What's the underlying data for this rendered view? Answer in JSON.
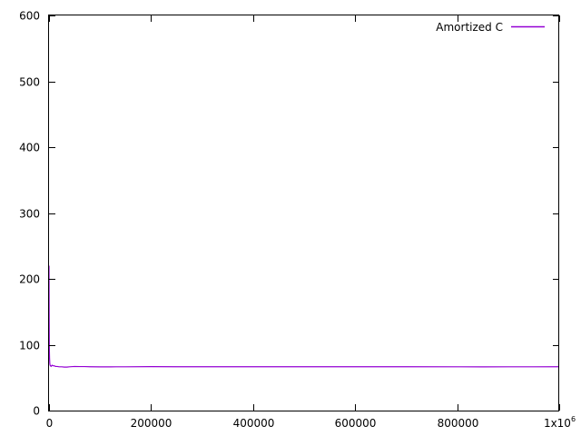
{
  "colors": {
    "background": "#ffffff",
    "axis": "#000000",
    "series": "#9400d3"
  },
  "chart_data": {
    "type": "line",
    "title": "",
    "xlabel": "",
    "ylabel": "",
    "xlim": [
      0,
      1000000
    ],
    "ylim": [
      0,
      600
    ],
    "grid": false,
    "legend_position": "top-right",
    "x_ticks": [
      0,
      200000,
      400000,
      600000,
      800000,
      1000000
    ],
    "x_tick_labels": [
      "0",
      "200000",
      "400000",
      "600000",
      "800000",
      "1x10"
    ],
    "x_last_tick_exponent": "6",
    "y_ticks": [
      0,
      100,
      200,
      300,
      400,
      500,
      600
    ],
    "y_tick_labels": [
      "0",
      "100",
      "200",
      "300",
      "400",
      "500",
      "600"
    ],
    "series": [
      {
        "name": "Amortized C",
        "x": [
          0,
          300,
          600,
          1000,
          1500,
          2000,
          3000,
          4000,
          5000,
          6000,
          8000,
          10000,
          13000,
          16000,
          20000,
          25000,
          30000,
          35000,
          40000,
          50000,
          60000,
          70000,
          80000,
          100000,
          120000,
          150000,
          200000,
          250000,
          300000,
          400000,
          500000,
          600000,
          700000,
          800000,
          850000,
          900000,
          950000,
          1000000
        ],
        "y": [
          220,
          140,
          95,
          80,
          72,
          69,
          68,
          67,
          68,
          69,
          68,
          68,
          67,
          67,
          66.5,
          66.5,
          66,
          66,
          66.5,
          67,
          66.8,
          66.8,
          66.6,
          66.4,
          66.4,
          66.5,
          66.7,
          66.6,
          66.6,
          66.6,
          66.6,
          66.6,
          66.6,
          66.5,
          66.4,
          66.5,
          66.5,
          66.6
        ]
      }
    ]
  }
}
